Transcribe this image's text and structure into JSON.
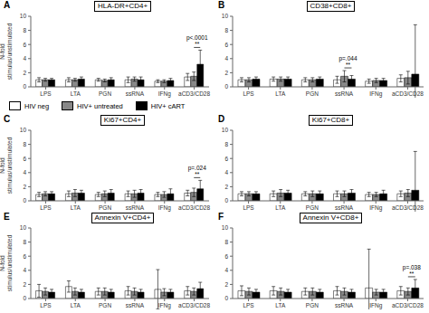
{
  "chart_data": [
    {
      "type": "bar",
      "panel": "A",
      "title": "HLA-DR+CD4+",
      "y_label": "N-fold\nstimulus/unstimulated",
      "categories": [
        "LPS",
        "LTA",
        "PGN",
        "ssRNA",
        "IFNg",
        "aCD3/CD28"
      ],
      "series": [
        {
          "name": "HIV neg",
          "color": "white",
          "values": [
            1.0,
            1.0,
            1.0,
            1.0,
            0.8,
            1.4
          ],
          "errors": [
            0.3,
            0.3,
            0.2,
            0.4,
            0.2,
            0.5
          ]
        },
        {
          "name": "HIV+ untreated",
          "color": "#888888",
          "values": [
            1.0,
            1.0,
            0.9,
            1.1,
            0.8,
            1.5
          ],
          "errors": [
            0.2,
            0.2,
            0.2,
            0.3,
            0.2,
            0.6
          ]
        },
        {
          "name": "HIV+ cART",
          "color": "black",
          "values": [
            1.0,
            1.1,
            1.0,
            1.0,
            0.9,
            3.2
          ],
          "errors": [
            0.2,
            0.3,
            0.3,
            0.4,
            0.3,
            2.0
          ]
        }
      ],
      "ylim": [
        0,
        10
      ],
      "yticks": [
        0,
        2,
        4,
        6,
        8,
        10
      ],
      "annotations": [
        {
          "x": "aCD3/CD28",
          "series": [
            "HIV+ untreated",
            "HIV+ cART"
          ],
          "texts": [
            "**",
            "p<.0001"
          ]
        }
      ],
      "legend": "bottom"
    },
    {
      "type": "bar",
      "panel": "B",
      "title": "CD38+CD8+",
      "categories": [
        "LPS",
        "LTA",
        "PGN",
        "ssRNA",
        "IFNg",
        "aCD3/CD28"
      ],
      "series": [
        {
          "name": "HIV neg",
          "color": "white",
          "values": [
            1.0,
            1.1,
            1.0,
            1.0,
            0.8,
            1.2
          ],
          "errors": [
            0.3,
            0.3,
            0.3,
            0.5,
            0.3,
            0.5
          ]
        },
        {
          "name": "HIV+ untreated",
          "color": "#888888",
          "values": [
            1.0,
            1.1,
            1.0,
            1.5,
            0.9,
            1.3
          ],
          "errors": [
            0.3,
            0.3,
            0.3,
            0.8,
            0.3,
            0.9
          ]
        },
        {
          "name": "HIV+ cART",
          "color": "black",
          "values": [
            1.1,
            1.1,
            1.1,
            1.1,
            0.9,
            1.8
          ],
          "errors": [
            0.3,
            0.3,
            0.3,
            0.5,
            0.3,
            7.0
          ]
        }
      ],
      "ylim": [
        0,
        10
      ],
      "yticks": [
        0,
        2,
        4,
        6,
        8,
        10
      ],
      "annotations": [
        {
          "x": "ssRNA",
          "series": [
            "HIV+ untreated",
            "HIV+ cART"
          ],
          "texts": [
            "**",
            "p=.044"
          ]
        }
      ]
    },
    {
      "type": "bar",
      "panel": "C",
      "title": "Ki67+CD4+",
      "y_label": "N-fold\nstimulus/unstimulated",
      "categories": [
        "LPS",
        "LTA",
        "PGN",
        "ssRNA",
        "IFNg",
        "aCD3/CD28"
      ],
      "series": [
        {
          "name": "HIV neg",
          "color": "white",
          "values": [
            0.9,
            1.0,
            0.9,
            1.0,
            0.9,
            1.1
          ],
          "errors": [
            0.3,
            0.4,
            0.3,
            0.4,
            0.3,
            0.4
          ]
        },
        {
          "name": "HIV+ untreated",
          "color": "#888888",
          "values": [
            1.0,
            1.1,
            1.0,
            1.0,
            0.9,
            1.2
          ],
          "errors": [
            0.3,
            0.5,
            0.4,
            0.5,
            0.4,
            0.6
          ]
        },
        {
          "name": "HIV+ cART",
          "color": "black",
          "values": [
            1.0,
            1.1,
            1.1,
            1.1,
            1.0,
            1.7
          ],
          "errors": [
            0.3,
            0.4,
            0.5,
            0.5,
            0.7,
            1.2
          ]
        }
      ],
      "ylim": [
        0,
        10
      ],
      "yticks": [
        0,
        2,
        4,
        6,
        8,
        10
      ],
      "annotations": [
        {
          "x": "aCD3/CD28",
          "series": [
            "HIV+ untreated",
            "HIV+ cART"
          ],
          "texts": [
            "**",
            "p=.024"
          ]
        }
      ]
    },
    {
      "type": "bar",
      "panel": "D",
      "title": "Ki67+CD8+",
      "categories": [
        "LPS",
        "LTA",
        "PGN",
        "ssRNA",
        "IFNg",
        "aCD3/CD28"
      ],
      "series": [
        {
          "name": "HIV neg",
          "color": "white",
          "values": [
            1.0,
            1.0,
            1.0,
            1.0,
            0.9,
            1.0
          ],
          "errors": [
            0.3,
            0.4,
            0.3,
            0.4,
            0.3,
            0.4
          ]
        },
        {
          "name": "HIV+ untreated",
          "color": "#888888",
          "values": [
            1.0,
            1.1,
            1.0,
            1.0,
            0.9,
            1.1
          ],
          "errors": [
            0.3,
            0.5,
            0.4,
            0.4,
            0.3,
            0.5
          ]
        },
        {
          "name": "HIV+ cART",
          "color": "black",
          "values": [
            1.0,
            1.1,
            1.0,
            1.1,
            1.0,
            1.5
          ],
          "errors": [
            0.3,
            0.4,
            0.4,
            0.5,
            0.5,
            5.5
          ]
        }
      ],
      "ylim": [
        0,
        10
      ],
      "yticks": [
        0,
        2,
        4,
        6,
        8,
        10
      ]
    },
    {
      "type": "bar",
      "panel": "E",
      "title": "Annexin V+CD4+",
      "y_label": "N-fold\nstimulus/unstimulated",
      "categories": [
        "LPS",
        "LTA",
        "PGN",
        "ssRNA",
        "IFNg",
        "aCD3/CD28"
      ],
      "series": [
        {
          "name": "HIV neg",
          "color": "white",
          "values": [
            1.1,
            1.7,
            1.0,
            1.1,
            1.3,
            1.1
          ],
          "errors": [
            0.9,
            0.8,
            0.5,
            0.6,
            2.8,
            0.6
          ]
        },
        {
          "name": "HIV+ untreated",
          "color": "#888888",
          "values": [
            1.0,
            1.0,
            1.0,
            1.0,
            0.9,
            1.0
          ],
          "errors": [
            0.5,
            0.5,
            0.5,
            0.5,
            0.5,
            0.5
          ]
        },
        {
          "name": "HIV+ cART",
          "color": "black",
          "values": [
            0.9,
            0.9,
            0.9,
            0.9,
            0.9,
            1.4
          ],
          "errors": [
            0.4,
            0.4,
            0.4,
            0.4,
            0.4,
            0.9
          ]
        }
      ],
      "ylim": [
        0,
        10
      ],
      "yticks": [
        0,
        2,
        4,
        6,
        8,
        10
      ]
    },
    {
      "type": "bar",
      "panel": "F",
      "title": "Annexin V+CD8+",
      "categories": [
        "LPS",
        "LTA",
        "PGN",
        "ssRNA",
        "IFNg",
        "aCD3/CD28"
      ],
      "series": [
        {
          "name": "HIV neg",
          "color": "white",
          "values": [
            1.1,
            1.1,
            1.0,
            1.1,
            1.5,
            1.1
          ],
          "errors": [
            0.7,
            0.6,
            0.5,
            0.6,
            5.5,
            0.6
          ]
        },
        {
          "name": "HIV+ untreated",
          "color": "#888888",
          "values": [
            1.0,
            1.0,
            1.0,
            1.0,
            0.9,
            1.0
          ],
          "errors": [
            0.5,
            0.5,
            0.5,
            0.5,
            0.4,
            0.5
          ]
        },
        {
          "name": "HIV+ cART",
          "color": "black",
          "values": [
            0.9,
            0.9,
            0.9,
            0.9,
            0.9,
            1.5
          ],
          "errors": [
            0.4,
            0.4,
            0.4,
            0.4,
            0.4,
            1.2
          ]
        }
      ],
      "ylim": [
        0,
        10
      ],
      "yticks": [
        0,
        2,
        4,
        6,
        8,
        10
      ],
      "annotations": [
        {
          "x": "aCD3/CD28",
          "series": [
            "HIV+ untreated",
            "HIV+ cART"
          ],
          "texts": [
            "**",
            "p=.038"
          ]
        }
      ]
    }
  ]
}
